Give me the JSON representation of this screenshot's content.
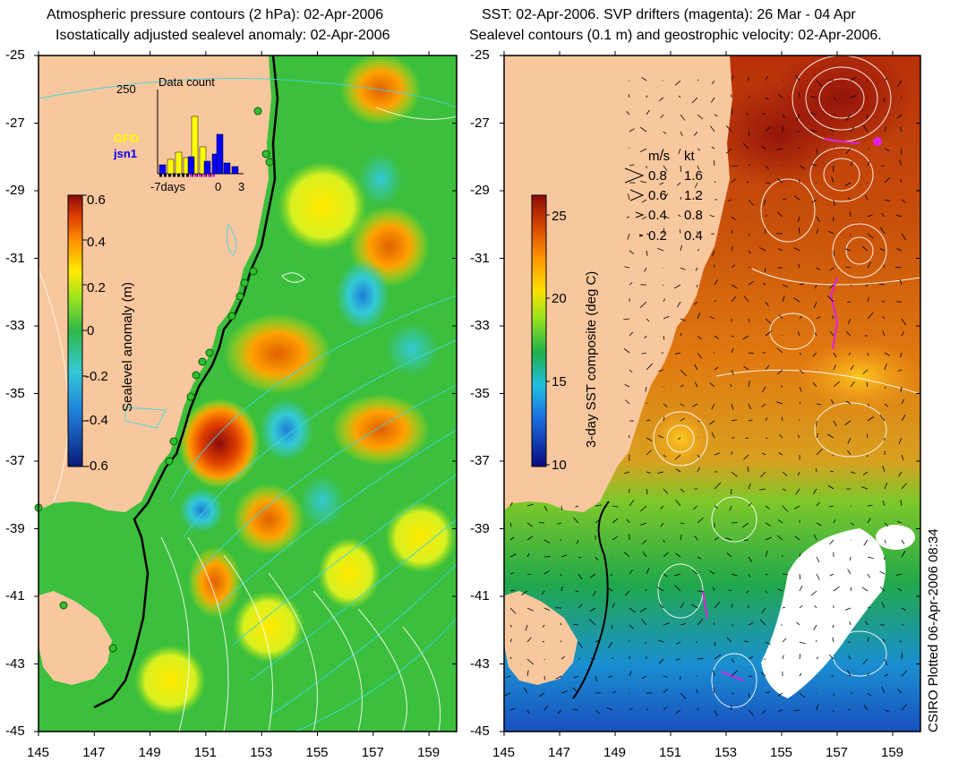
{
  "left_panel": {
    "title_line1": "Atmospheric pressure contours (2 hPa): 02-Apr-2006",
    "title_line2": "Isostatically adjusted sealevel anomaly: 02-Apr-2006",
    "colorbar_label": "Sealevel anomaly (m)",
    "colorbar_ticks": [
      "0.6",
      "0.4",
      "0.2",
      "0",
      "-0.2",
      "-0.4",
      "-0.6"
    ],
    "inset": {
      "title": "Data count",
      "ymax_label": "250",
      "x_labels": [
        "-7days",
        "0",
        "3"
      ],
      "series_gfo": "GFO",
      "series_jsn1": "jsn1",
      "gfo_color": "#ffff00",
      "jsn1_color": "#0000ff"
    }
  },
  "right_panel": {
    "title_line1": "SST: 02-Apr-2006. SVP drifters (magenta): 26 Mar - 04 Apr",
    "title_line2": "Sealevel contours (0.1 m) and geostrophic velocity: 02-Apr-2006.",
    "colorbar_label": "3-day SST composite (deg C)",
    "colorbar_ticks": [
      "25",
      "20",
      "15",
      "10"
    ],
    "velocity_key": {
      "header_ms": "m/s",
      "header_kt": "kt",
      "rows": [
        {
          "ms": "0.8",
          "kt": "1.6"
        },
        {
          "ms": "0.6",
          "kt": "1.2"
        },
        {
          "ms": "0.4",
          "kt": "0.8"
        },
        {
          "ms": "0.2",
          "kt": "0.4"
        }
      ]
    }
  },
  "lat_ticks": [
    "-25",
    "-27",
    "-29",
    "-31",
    "-33",
    "-35",
    "-37",
    "-39",
    "-41",
    "-43",
    "-45"
  ],
  "lon_ticks": [
    "145",
    "147",
    "149",
    "151",
    "153",
    "155",
    "157",
    "159"
  ],
  "credit": "CSIRO Plotted 06-Apr-2006 08:34",
  "colors": {
    "land": "#f9c79e",
    "sla_ramp": [
      "#0a1a7a",
      "#1f7fd8",
      "#33c9d6",
      "#2fb84a",
      "#9be31e",
      "#ffea00",
      "#ff9a00",
      "#e04000",
      "#8b0a0a"
    ],
    "sst_ramp": [
      "#0a0a80",
      "#1a6fe0",
      "#20c0e0",
      "#1fb04a",
      "#9be31e",
      "#ffe000",
      "#ff9a00",
      "#d84a00",
      "#8b0a0a"
    ],
    "contour_cyan": "#3fd6e0",
    "contour_white": "#ffffff",
    "drifter": "#e020e0"
  }
}
